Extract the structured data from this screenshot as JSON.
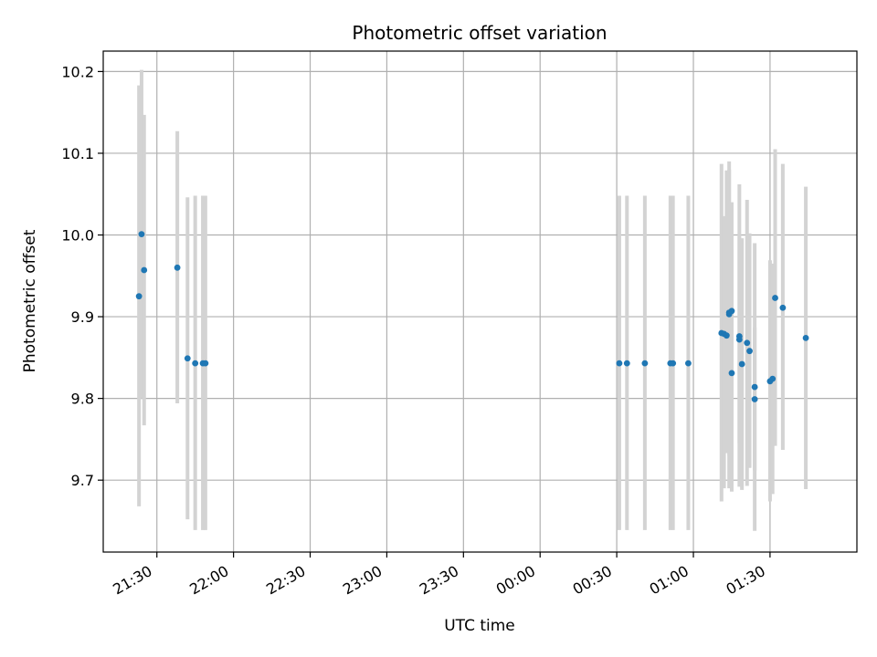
{
  "chart_data": {
    "type": "scatter",
    "title": "Photometric offset variation",
    "xlabel": "UTC time",
    "ylabel": "Photometric offset",
    "grid": true,
    "legend": "none",
    "x_axis": "time (HH:MM UTC)",
    "xlim": [
      "21:09",
      "02:04"
    ],
    "ylim": [
      9.612,
      10.225
    ],
    "x_ticks": [
      "21:30",
      "22:00",
      "22:30",
      "23:00",
      "23:30",
      "00:00",
      "00:30",
      "01:00",
      "01:30"
    ],
    "y_ticks": [
      9.7,
      9.8,
      9.9,
      10.0,
      10.1,
      10.2
    ],
    "y_tick_labels": [
      "9.7",
      "9.8",
      "9.9",
      "10.0",
      "10.1",
      "10.2"
    ],
    "colors": {
      "point": "#1f77b4",
      "errorbar": "#d3d3d3",
      "grid": "#b0b0b0"
    },
    "points": [
      {
        "x": "21:23",
        "y": 9.925,
        "lo": 9.668,
        "hi": 10.183
      },
      {
        "x": "21:24",
        "y": 10.001,
        "lo": 9.8,
        "hi": 10.202
      },
      {
        "x": "21:25",
        "y": 9.957,
        "lo": 9.767,
        "hi": 10.147
      },
      {
        "x": "21:38",
        "y": 9.96,
        "lo": 9.794,
        "hi": 10.127
      },
      {
        "x": "21:42",
        "y": 9.849,
        "lo": 9.652,
        "hi": 10.046
      },
      {
        "x": "21:45",
        "y": 9.843,
        "lo": 9.639,
        "hi": 10.048
      },
      {
        "x": "21:48",
        "y": 9.843,
        "lo": 9.639,
        "hi": 10.048
      },
      {
        "x": "21:49",
        "y": 9.843,
        "lo": 9.639,
        "hi": 10.048
      },
      {
        "x": "00:31",
        "y": 9.843,
        "lo": 9.639,
        "hi": 10.048
      },
      {
        "x": "00:34",
        "y": 9.843,
        "lo": 9.639,
        "hi": 10.048
      },
      {
        "x": "00:41",
        "y": 9.843,
        "lo": 9.639,
        "hi": 10.048
      },
      {
        "x": "00:51",
        "y": 9.843,
        "lo": 9.639,
        "hi": 10.048
      },
      {
        "x": "00:52",
        "y": 9.843,
        "lo": 9.639,
        "hi": 10.048
      },
      {
        "x": "00:58",
        "y": 9.843,
        "lo": 9.639,
        "hi": 10.048
      },
      {
        "x": "01:11",
        "y": 9.88,
        "lo": 9.674,
        "hi": 10.087
      },
      {
        "x": "01:12",
        "y": 9.879,
        "lo": 9.69,
        "hi": 10.023
      },
      {
        "x": "01:13",
        "y": 9.877,
        "lo": 9.733,
        "hi": 10.079
      },
      {
        "x": "01:14",
        "y": 9.903,
        "lo": 9.69,
        "hi": 10.09
      },
      {
        "x": "01:14",
        "y": 9.905,
        "lo": 9.73,
        "hi": 10.08
      },
      {
        "x": "01:15",
        "y": 9.907,
        "lo": 9.773,
        "hi": 10.04
      },
      {
        "x": "01:15",
        "y": 9.831,
        "lo": 9.686,
        "hi": 9.983
      },
      {
        "x": "01:18",
        "y": 9.876,
        "lo": 9.692,
        "hi": 10.062
      },
      {
        "x": "01:18",
        "y": 9.872,
        "lo": 9.745,
        "hi": 9.998
      },
      {
        "x": "01:19",
        "y": 9.842,
        "lo": 9.688,
        "hi": 9.996
      },
      {
        "x": "01:21",
        "y": 9.868,
        "lo": 9.693,
        "hi": 10.043
      },
      {
        "x": "01:22",
        "y": 9.858,
        "lo": 9.715,
        "hi": 10.002
      },
      {
        "x": "01:24",
        "y": 9.814,
        "lo": 9.638,
        "hi": 9.99
      },
      {
        "x": "01:24",
        "y": 9.799,
        "lo": 9.712,
        "hi": 9.887
      },
      {
        "x": "01:30",
        "y": 9.821,
        "lo": 9.674,
        "hi": 9.969
      },
      {
        "x": "01:31",
        "y": 9.824,
        "lo": 9.683,
        "hi": 9.965
      },
      {
        "x": "01:32",
        "y": 9.923,
        "lo": 9.742,
        "hi": 10.105
      },
      {
        "x": "01:35",
        "y": 9.911,
        "lo": 9.737,
        "hi": 10.087
      },
      {
        "x": "01:44",
        "y": 9.874,
        "lo": 9.689,
        "hi": 10.059
      }
    ]
  }
}
